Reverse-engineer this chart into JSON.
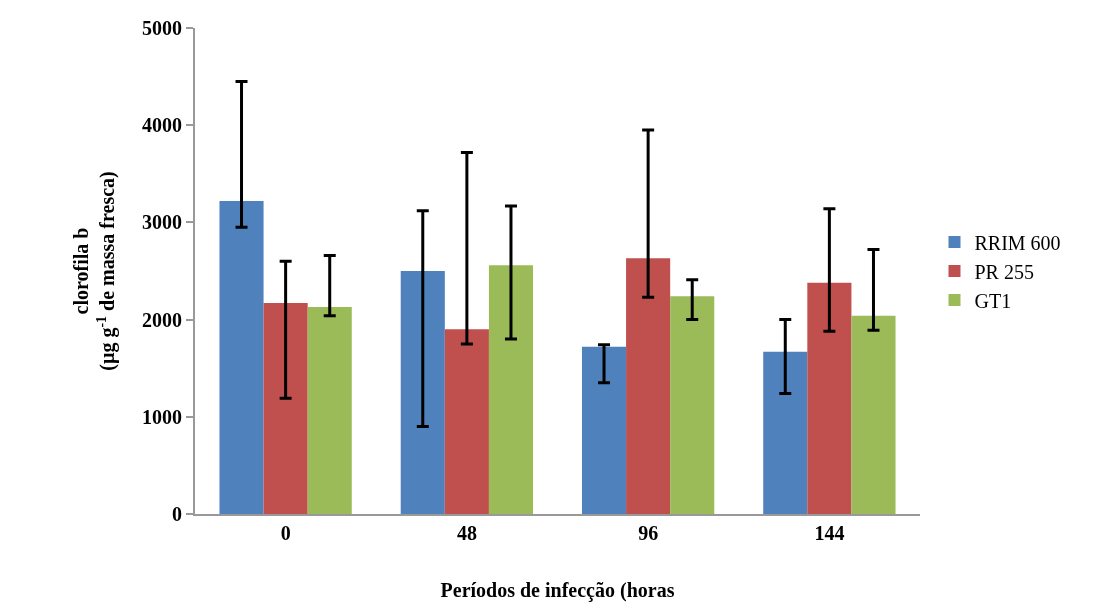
{
  "chart_data": {
    "type": "bar",
    "xlabel": "Períodos de infecção (horas",
    "ylabel": "clorofila b\n(µg g$^{-1}$ de massa fresca)",
    "categories": [
      "0",
      "48",
      "96",
      "144"
    ],
    "ylim": [
      0,
      5000
    ],
    "yticks": [
      0,
      1000,
      2000,
      3000,
      4000,
      5000
    ],
    "grid": false,
    "legend": "right",
    "series": [
      {
        "name": "RRIM 600",
        "color": "#4f81bd",
        "values": [
          3220,
          2500,
          1720,
          1670
        ],
        "errors": [
          [
            2950,
            4450
          ],
          [
            900,
            3120
          ],
          [
            1350,
            1740
          ],
          [
            1240,
            2000
          ]
        ]
      },
      {
        "name": "PR 255",
        "color": "#c0504d",
        "values": [
          2170,
          1900,
          2630,
          2380
        ],
        "errors": [
          [
            1190,
            2600
          ],
          [
            1750,
            3720
          ],
          [
            2230,
            3950
          ],
          [
            1880,
            3140
          ]
        ]
      },
      {
        "name": "GT1",
        "color": "#9bbb59",
        "values": [
          2130,
          2560,
          2240,
          2040
        ],
        "errors": [
          [
            2040,
            2660
          ],
          [
            1800,
            3170
          ],
          [
            2000,
            2410
          ],
          [
            1890,
            2720
          ]
        ]
      }
    ]
  }
}
